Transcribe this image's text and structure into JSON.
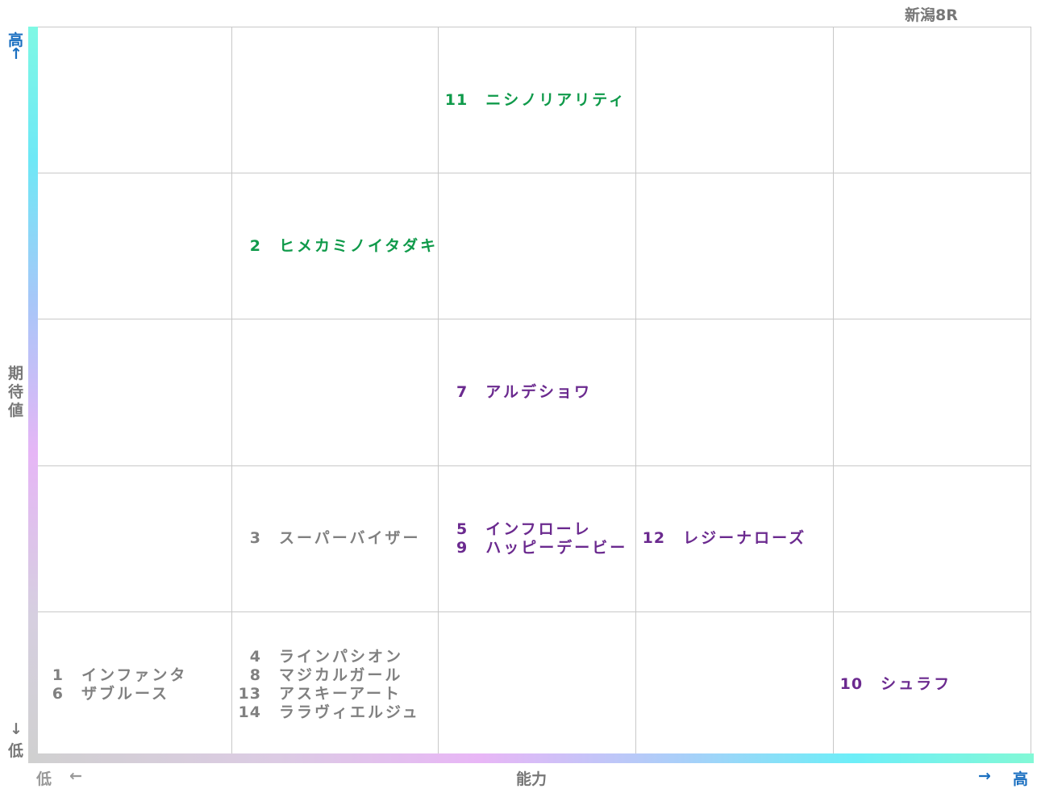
{
  "header": {
    "title": "新潟8R"
  },
  "y_axis": {
    "high": "高",
    "high_arrow": "↑",
    "label": "期待値",
    "low_arrow": "↓",
    "low": "低"
  },
  "x_axis": {
    "low": "低",
    "low_arrow": "←",
    "label": "能力",
    "high_arrow": "→",
    "high": "高"
  },
  "grid": {
    "rows": [
      [
        [],
        [],
        [
          {
            "num": "11",
            "name": "ニシノリアリティ",
            "color": "#0f9a4a"
          }
        ],
        [],
        []
      ],
      [
        [],
        [
          {
            "num": "2",
            "name": "ヒメカミノイタダキ",
            "color": "#0f9a4a"
          }
        ],
        [],
        [],
        []
      ],
      [
        [],
        [],
        [
          {
            "num": "7",
            "name": "アルデショワ",
            "color": "#6b2a8f"
          }
        ],
        [],
        []
      ],
      [
        [],
        [
          {
            "num": "3",
            "name": "スーパーバイザー",
            "color": "#808080"
          }
        ],
        [
          {
            "num": "5",
            "name": "インフローレ",
            "color": "#6b2a8f"
          },
          {
            "num": "9",
            "name": "ハッピーデービー",
            "color": "#6b2a8f"
          }
        ],
        [
          {
            "num": "12",
            "name": "レジーナローズ",
            "color": "#6b2a8f"
          }
        ],
        []
      ],
      [
        [
          {
            "num": "1",
            "name": "インファンタ",
            "color": "#808080"
          },
          {
            "num": "6",
            "name": "ザブルース",
            "color": "#808080"
          }
        ],
        [
          {
            "num": "4",
            "name": "ラインパシオン",
            "color": "#808080"
          },
          {
            "num": "8",
            "name": "マジカルガール",
            "color": "#808080"
          },
          {
            "num": "13",
            "name": "アスキーアート",
            "color": "#808080"
          },
          {
            "num": "14",
            "name": "ララヴィエルジュ",
            "color": "#808080"
          }
        ],
        [],
        [],
        [
          {
            "num": "10",
            "name": "シュラフ",
            "color": "#6b2a8f"
          }
        ]
      ]
    ]
  }
}
